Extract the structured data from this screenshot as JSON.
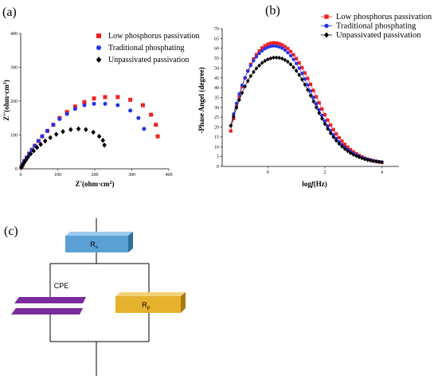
{
  "panels": {
    "a": "(a)",
    "b": "(b)",
    "c": "(c)"
  },
  "colors": {
    "low": "#ee2222",
    "trad": "#2233ee",
    "unpass": "#000000",
    "rs_box": "#5aa0d4",
    "rp_box": "#e6b12c",
    "cpe_plates": "#7a2c9e"
  },
  "chart_data": [
    {
      "type": "scatter",
      "title": "",
      "xlabel": "Z'(ohm·cm²)",
      "ylabel": "Z''(ohm·cm²)",
      "xlim": [
        0,
        400
      ],
      "ylim": [
        0,
        400
      ],
      "xticks": [
        "0",
        "100",
        "200",
        "300",
        "400"
      ],
      "yticks": [
        "0",
        "100",
        "200",
        "300",
        "400"
      ],
      "legend_position": "top-right",
      "series": [
        {
          "name": "Low phosphorus passivation",
          "marker": "square",
          "x": [
            2,
            5,
            10,
            16,
            23,
            30,
            38,
            48,
            58,
            72,
            88,
            105,
            125,
            147,
            172,
            198,
            228,
            262,
            296,
            330,
            352,
            365,
            370
          ],
          "y": [
            5,
            13,
            23,
            33,
            45,
            56,
            68,
            82,
            96,
            112,
            130,
            150,
            168,
            184,
            197,
            208,
            212,
            212,
            204,
            188,
            160,
            130,
            96
          ]
        },
        {
          "name": "Traditional phosphating",
          "marker": "circle",
          "x": [
            2,
            5,
            10,
            16,
            23,
            30,
            38,
            48,
            58,
            72,
            88,
            105,
            125,
            147,
            172,
            198,
            228,
            262,
            296,
            318,
            333
          ],
          "y": [
            5,
            13,
            23,
            33,
            45,
            56,
            68,
            82,
            96,
            112,
            130,
            147,
            162,
            177,
            188,
            192,
            192,
            188,
            172,
            150,
            118
          ]
        },
        {
          "name": "Unpassivated passivation",
          "marker": "diamond",
          "x": [
            2,
            5,
            9,
            14,
            20,
            27,
            35,
            44,
            54,
            66,
            80,
            96,
            114,
            135,
            156,
            176,
            196,
            212,
            222,
            226
          ],
          "y": [
            4,
            10,
            18,
            26,
            35,
            44,
            53,
            63,
            72,
            82,
            92,
            102,
            110,
            116,
            118,
            116,
            108,
            96,
            84,
            70
          ]
        }
      ]
    },
    {
      "type": "scatter",
      "title": "",
      "xlabel": "log f(Hz)",
      "ylabel": "-Phase Angel (degree)",
      "xlim": [
        -1.6,
        4.6
      ],
      "ylim": [
        0,
        70
      ],
      "xticks": [
        "0",
        "2",
        "4"
      ],
      "yticks": [
        "0",
        "5",
        "10",
        "15",
        "20",
        "25",
        "30",
        "35",
        "40",
        "45",
        "50",
        "55",
        "60",
        "65",
        "70"
      ],
      "legend_position": "top-right",
      "series": [
        {
          "name": "Low phosphorus passivation",
          "marker": "square",
          "x": [
            -1.3,
            -1.2,
            -1.1,
            -1.0,
            -0.9,
            -0.8,
            -0.7,
            -0.6,
            -0.5,
            -0.4,
            -0.3,
            -0.2,
            -0.1,
            0.0,
            0.1,
            0.2,
            0.3,
            0.4,
            0.5,
            0.6,
            0.7,
            0.8,
            0.9,
            1.0,
            1.1,
            1.2,
            1.3,
            1.4,
            1.5,
            1.6,
            1.7,
            1.8,
            1.9,
            2.0,
            2.1,
            2.2,
            2.3,
            2.4,
            2.5,
            2.6,
            2.7,
            2.8,
            2.9,
            3.0,
            3.1,
            3.2,
            3.3,
            3.4,
            3.5,
            3.6,
            3.7,
            3.8,
            3.9,
            4.0
          ],
          "y": [
            18.0,
            24.3,
            30.3,
            35.7,
            40.6,
            44.9,
            48.6,
            51.8,
            54.6,
            56.8,
            58.7,
            60.2,
            61.3,
            62.1,
            62.6,
            62.8,
            62.7,
            62.4,
            61.8,
            60.9,
            59.8,
            58.4,
            56.7,
            54.8,
            52.6,
            50.2,
            47.5,
            44.7,
            41.7,
            38.6,
            35.4,
            32.3,
            29.2,
            26.3,
            23.5,
            21.0,
            18.7,
            16.5,
            14.6,
            12.8,
            11.2,
            9.8,
            8.5,
            7.4,
            6.4,
            5.6,
            4.9,
            4.2,
            3.7,
            3.3,
            2.9,
            2.6,
            2.3,
            2.1
          ]
        },
        {
          "name": "Traditional phosphating",
          "marker": "circle",
          "x": [
            -1.3,
            -1.2,
            -1.1,
            -1.0,
            -0.9,
            -0.8,
            -0.7,
            -0.6,
            -0.5,
            -0.4,
            -0.3,
            -0.2,
            -0.1,
            0.0,
            0.1,
            0.2,
            0.3,
            0.4,
            0.5,
            0.6,
            0.7,
            0.8,
            0.9,
            1.0,
            1.1,
            1.2,
            1.3,
            1.4,
            1.5,
            1.6,
            1.7,
            1.8,
            1.9,
            2.0,
            2.1,
            2.2,
            2.3,
            2.4,
            2.5,
            2.6,
            2.7,
            2.8,
            2.9,
            3.0,
            3.1,
            3.2,
            3.3,
            3.4,
            3.5,
            3.6,
            3.7,
            3.8,
            3.9,
            4.0
          ],
          "y": [
            20.7,
            26.6,
            32.0,
            36.9,
            41.3,
            45.1,
            48.4,
            51.3,
            53.7,
            55.7,
            57.4,
            58.7,
            59.8,
            60.5,
            61.0,
            61.2,
            61.1,
            60.7,
            60.1,
            59.1,
            57.8,
            56.3,
            54.4,
            52.3,
            49.9,
            47.3,
            44.4,
            41.4,
            38.3,
            35.1,
            31.9,
            28.8,
            25.9,
            23.1,
            20.6,
            18.2,
            16.1,
            14.2,
            12.5,
            11.0,
            9.7,
            8.5,
            7.5,
            6.6,
            5.8,
            5.1,
            4.5,
            4.0,
            3.6,
            3.2,
            2.9,
            2.6,
            2.4,
            2.2
          ]
        },
        {
          "name": "Unpassivated passivation",
          "marker": "diamond",
          "x": [
            -1.3,
            -1.2,
            -1.1,
            -1.0,
            -0.9,
            -0.8,
            -0.7,
            -0.6,
            -0.5,
            -0.4,
            -0.3,
            -0.2,
            -0.1,
            0.0,
            0.1,
            0.2,
            0.3,
            0.4,
            0.5,
            0.6,
            0.7,
            0.8,
            0.9,
            1.0,
            1.1,
            1.2,
            1.3,
            1.4,
            1.5,
            1.6,
            1.7,
            1.8,
            1.9,
            2.0,
            2.1,
            2.2,
            2.3,
            2.4,
            2.5,
            2.6,
            2.7,
            2.8,
            2.9,
            3.0,
            3.1,
            3.2,
            3.3,
            3.4,
            3.5,
            3.6,
            3.7,
            3.8,
            3.9,
            4.0
          ],
          "y": [
            20.7,
            25.4,
            29.8,
            33.8,
            37.4,
            40.6,
            43.4,
            45.9,
            48.0,
            49.8,
            51.3,
            52.6,
            53.6,
            54.4,
            54.9,
            55.3,
            55.3,
            55.2,
            54.8,
            54.1,
            53.2,
            51.9,
            50.4,
            48.6,
            46.5,
            44.2,
            41.6,
            38.9,
            36.0,
            33.0,
            30.0,
            27.1,
            24.3,
            21.6,
            19.1,
            16.9,
            14.9,
            13.1,
            11.5,
            10.1,
            8.9,
            7.8,
            6.8,
            6.0,
            5.3,
            4.7,
            4.2,
            3.7,
            3.3,
            3.0,
            2.7,
            2.5,
            2.3,
            2.1
          ]
        }
      ]
    }
  ],
  "circuit": {
    "rs_label_main": "R",
    "rs_label_sub": "s",
    "cpe_label": "CPE",
    "rp_label_main": "R",
    "rp_label_sub": "p"
  }
}
